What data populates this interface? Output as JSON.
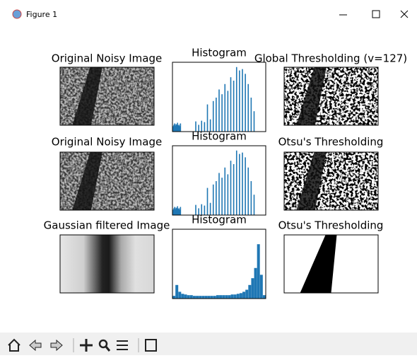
{
  "window": {
    "title": "Figure 1"
  },
  "panels": [
    {
      "title": "Original Noisy Image"
    },
    {
      "title": "Histogram",
      "histogram": {
        "x": [
          2,
          4,
          6,
          8,
          10,
          12,
          14,
          16,
          18,
          20,
          22,
          64,
          72,
          80,
          88,
          96,
          104,
          112,
          120,
          128,
          136,
          144,
          152,
          160,
          168,
          176,
          184,
          192,
          200,
          208,
          216,
          224
        ],
        "values": [
          0.08,
          0.1,
          0.12,
          0.09,
          0.11,
          0.1,
          0.13,
          0.09,
          0.1,
          0.08,
          0.12,
          0.15,
          0.1,
          0.16,
          0.14,
          0.4,
          0.18,
          0.45,
          0.5,
          0.62,
          0.55,
          0.7,
          0.6,
          0.8,
          0.75,
          0.95,
          0.9,
          0.92,
          0.85,
          0.7,
          0.5,
          0.3
        ]
      }
    },
    {
      "title": "Global Thresholding (v=127)"
    },
    {
      "title": "Original Noisy Image"
    },
    {
      "title": "Histogram",
      "histogram": {
        "x": [
          2,
          4,
          6,
          8,
          10,
          12,
          14,
          16,
          18,
          20,
          22,
          64,
          72,
          80,
          88,
          96,
          104,
          112,
          120,
          128,
          136,
          144,
          152,
          160,
          168,
          176,
          184,
          192,
          200,
          208,
          216,
          224
        ],
        "values": [
          0.08,
          0.1,
          0.12,
          0.09,
          0.11,
          0.1,
          0.13,
          0.09,
          0.1,
          0.08,
          0.12,
          0.15,
          0.1,
          0.16,
          0.14,
          0.4,
          0.18,
          0.45,
          0.5,
          0.62,
          0.55,
          0.7,
          0.6,
          0.8,
          0.75,
          0.95,
          0.9,
          0.92,
          0.85,
          0.7,
          0.5,
          0.3
        ]
      }
    },
    {
      "title": "Otsu's Thresholding"
    },
    {
      "title": "Gaussian filtered Image"
    },
    {
      "title": "Histogram",
      "histogram": {
        "x": [
          4,
          12,
          20,
          28,
          36,
          44,
          52,
          60,
          68,
          76,
          84,
          92,
          100,
          108,
          116,
          124,
          132,
          140,
          148,
          156,
          164,
          172,
          180,
          188,
          196,
          204,
          212,
          220,
          228,
          236,
          244,
          252
        ],
        "values": [
          0.04,
          0.2,
          0.1,
          0.07,
          0.06,
          0.05,
          0.05,
          0.04,
          0.04,
          0.04,
          0.04,
          0.04,
          0.04,
          0.04,
          0.04,
          0.05,
          0.05,
          0.05,
          0.05,
          0.05,
          0.06,
          0.06,
          0.07,
          0.08,
          0.1,
          0.13,
          0.2,
          0.3,
          0.45,
          0.8,
          0.35,
          0.05
        ]
      }
    },
    {
      "title": "Otsu's Thresholding"
    }
  ]
}
